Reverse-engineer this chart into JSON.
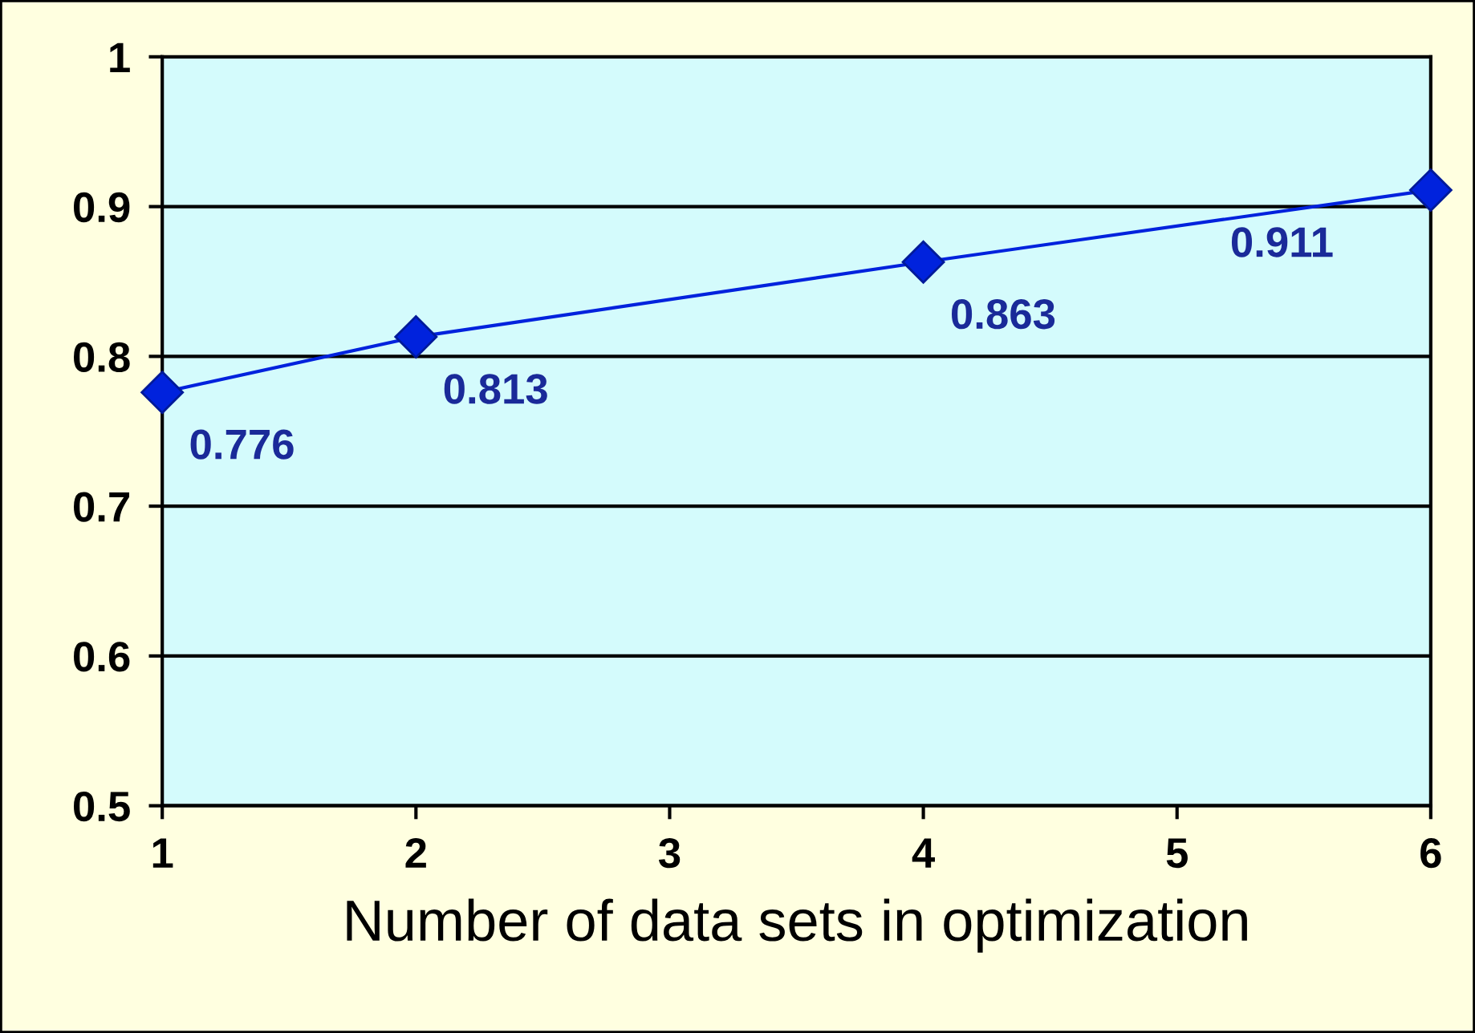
{
  "chart_data": {
    "type": "line",
    "xlabel": "Number of data sets in optimization",
    "x": [
      1,
      2,
      4,
      6
    ],
    "series": [
      {
        "color": "#0022dd",
        "values": [
          0.776,
          0.813,
          0.863,
          0.911
        ]
      }
    ],
    "xlim": [
      1,
      6
    ],
    "xticks": [
      1,
      2,
      3,
      4,
      5,
      6
    ],
    "ylim": [
      0.5,
      1
    ],
    "yticks": [
      0.5,
      0.6,
      0.7,
      0.8,
      0.9,
      1
    ],
    "grid": "y",
    "marker": "diamond",
    "line_style": "solid",
    "data_labels": true
  }
}
